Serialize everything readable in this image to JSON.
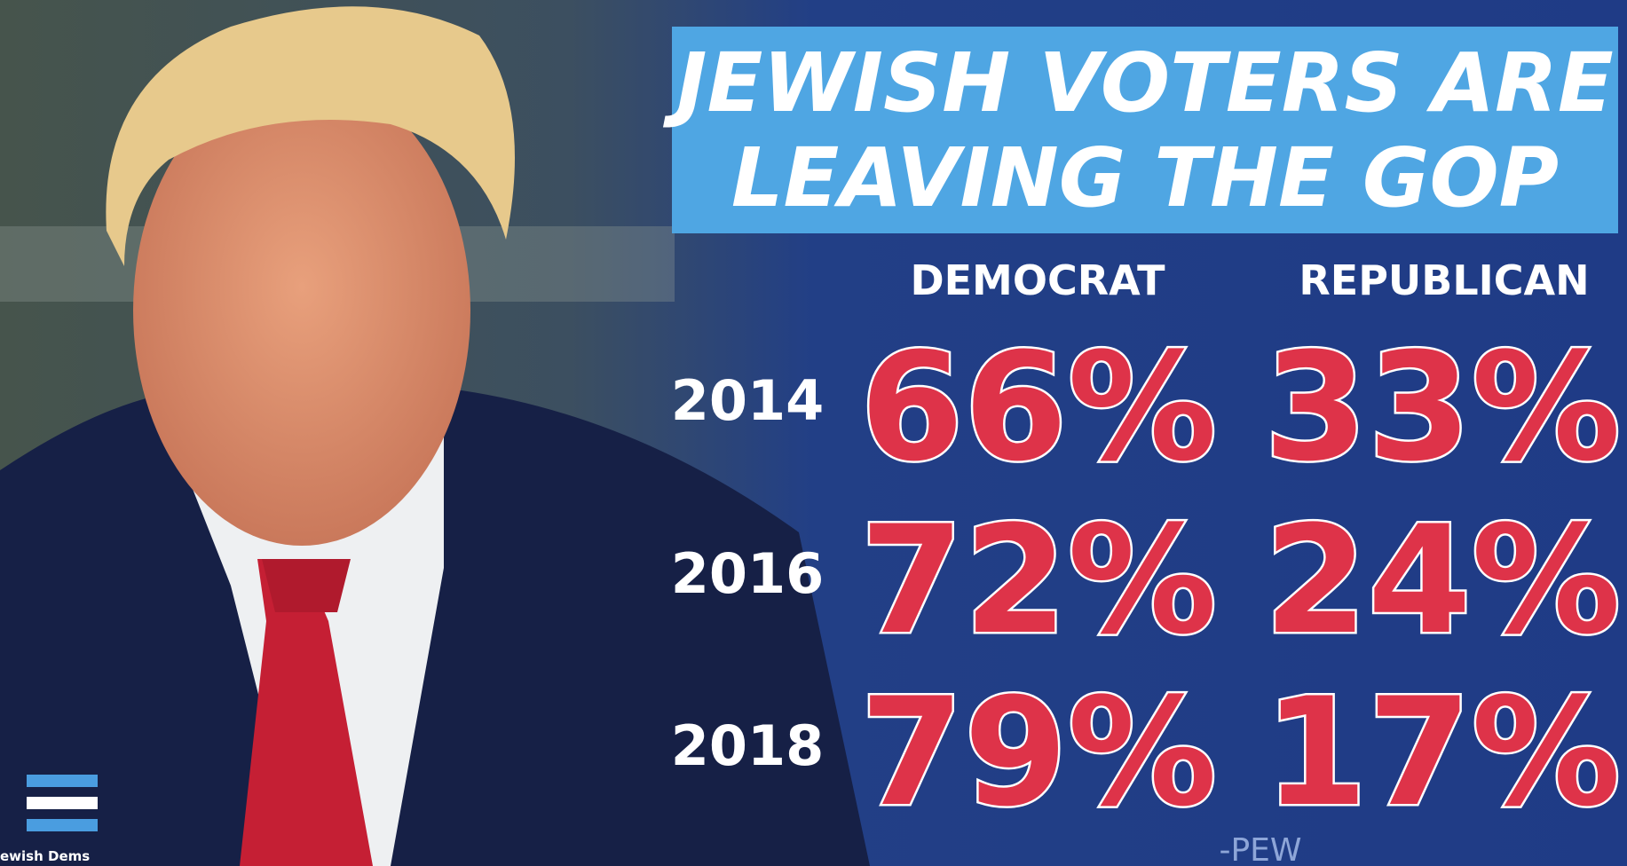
{
  "header": {
    "title": [
      "JEWISH VOTERS ARE",
      "LEAVING THE GOP"
    ]
  },
  "table": {
    "columns": [
      "DEMOCRAT",
      "REPUBLICAN"
    ],
    "rows": [
      [
        "2014",
        "66%",
        "33%"
      ],
      [
        "2016",
        "72%",
        "24%"
      ],
      [
        "2018",
        "79%",
        "17%"
      ]
    ]
  },
  "source": "-PEW",
  "logo": {
    "text": "ewish Dems"
  }
}
